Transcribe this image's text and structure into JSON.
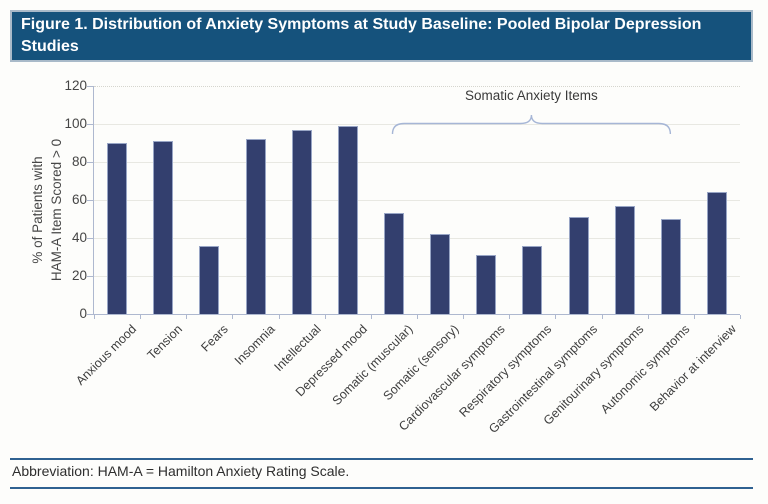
{
  "figure": {
    "title": "Figure 1. Distribution of Anxiety Symptoms at Study Baseline: Pooled Bipolar Depression Studies",
    "footnote": "Abbreviation: HAM-A = Hamilton Anxiety Rating Scale."
  },
  "colors": {
    "header_bg": "#15527c",
    "header_text": "#ffffff",
    "bar_fill": "#333f6e",
    "bar_edge": "#98a5c5",
    "axis": "#aeb8cf",
    "bracket": "#a6b6d6",
    "footer_rule": "#2f6191"
  },
  "chart_data": {
    "type": "bar",
    "categories": [
      "Anxious mood",
      "Tension",
      "Fears",
      "Insomnia",
      "Intellectual",
      "Depressed mood",
      "Somatic (muscular)",
      "Somatic (sensory)",
      "Cardiovascular symptoms",
      "Respiratory symptoms",
      "Gastrointestinal symptoms",
      "Genitourinary symptoms",
      "Autonomic symptoms",
      "Behavior at interview"
    ],
    "values": [
      90,
      91,
      36,
      92,
      97,
      99,
      53,
      42,
      31,
      36,
      51,
      57,
      50,
      64
    ],
    "title": "",
    "xlabel": "",
    "ylabel": "% of Patients with HAM-A Item Scored > 0",
    "ylabel_lines": [
      "% of Patients with",
      "HAM-A Item Scored > 0"
    ],
    "ylim": [
      0,
      120
    ],
    "yticks": [
      0,
      20,
      40,
      60,
      80,
      100,
      120
    ],
    "grid": true,
    "legend": null,
    "annotation": {
      "label": "Somatic Anxiety Items",
      "from_category": "Somatic (muscular)",
      "to_category": "Autonomic symptoms",
      "from_index": 6,
      "to_index": 12
    }
  }
}
